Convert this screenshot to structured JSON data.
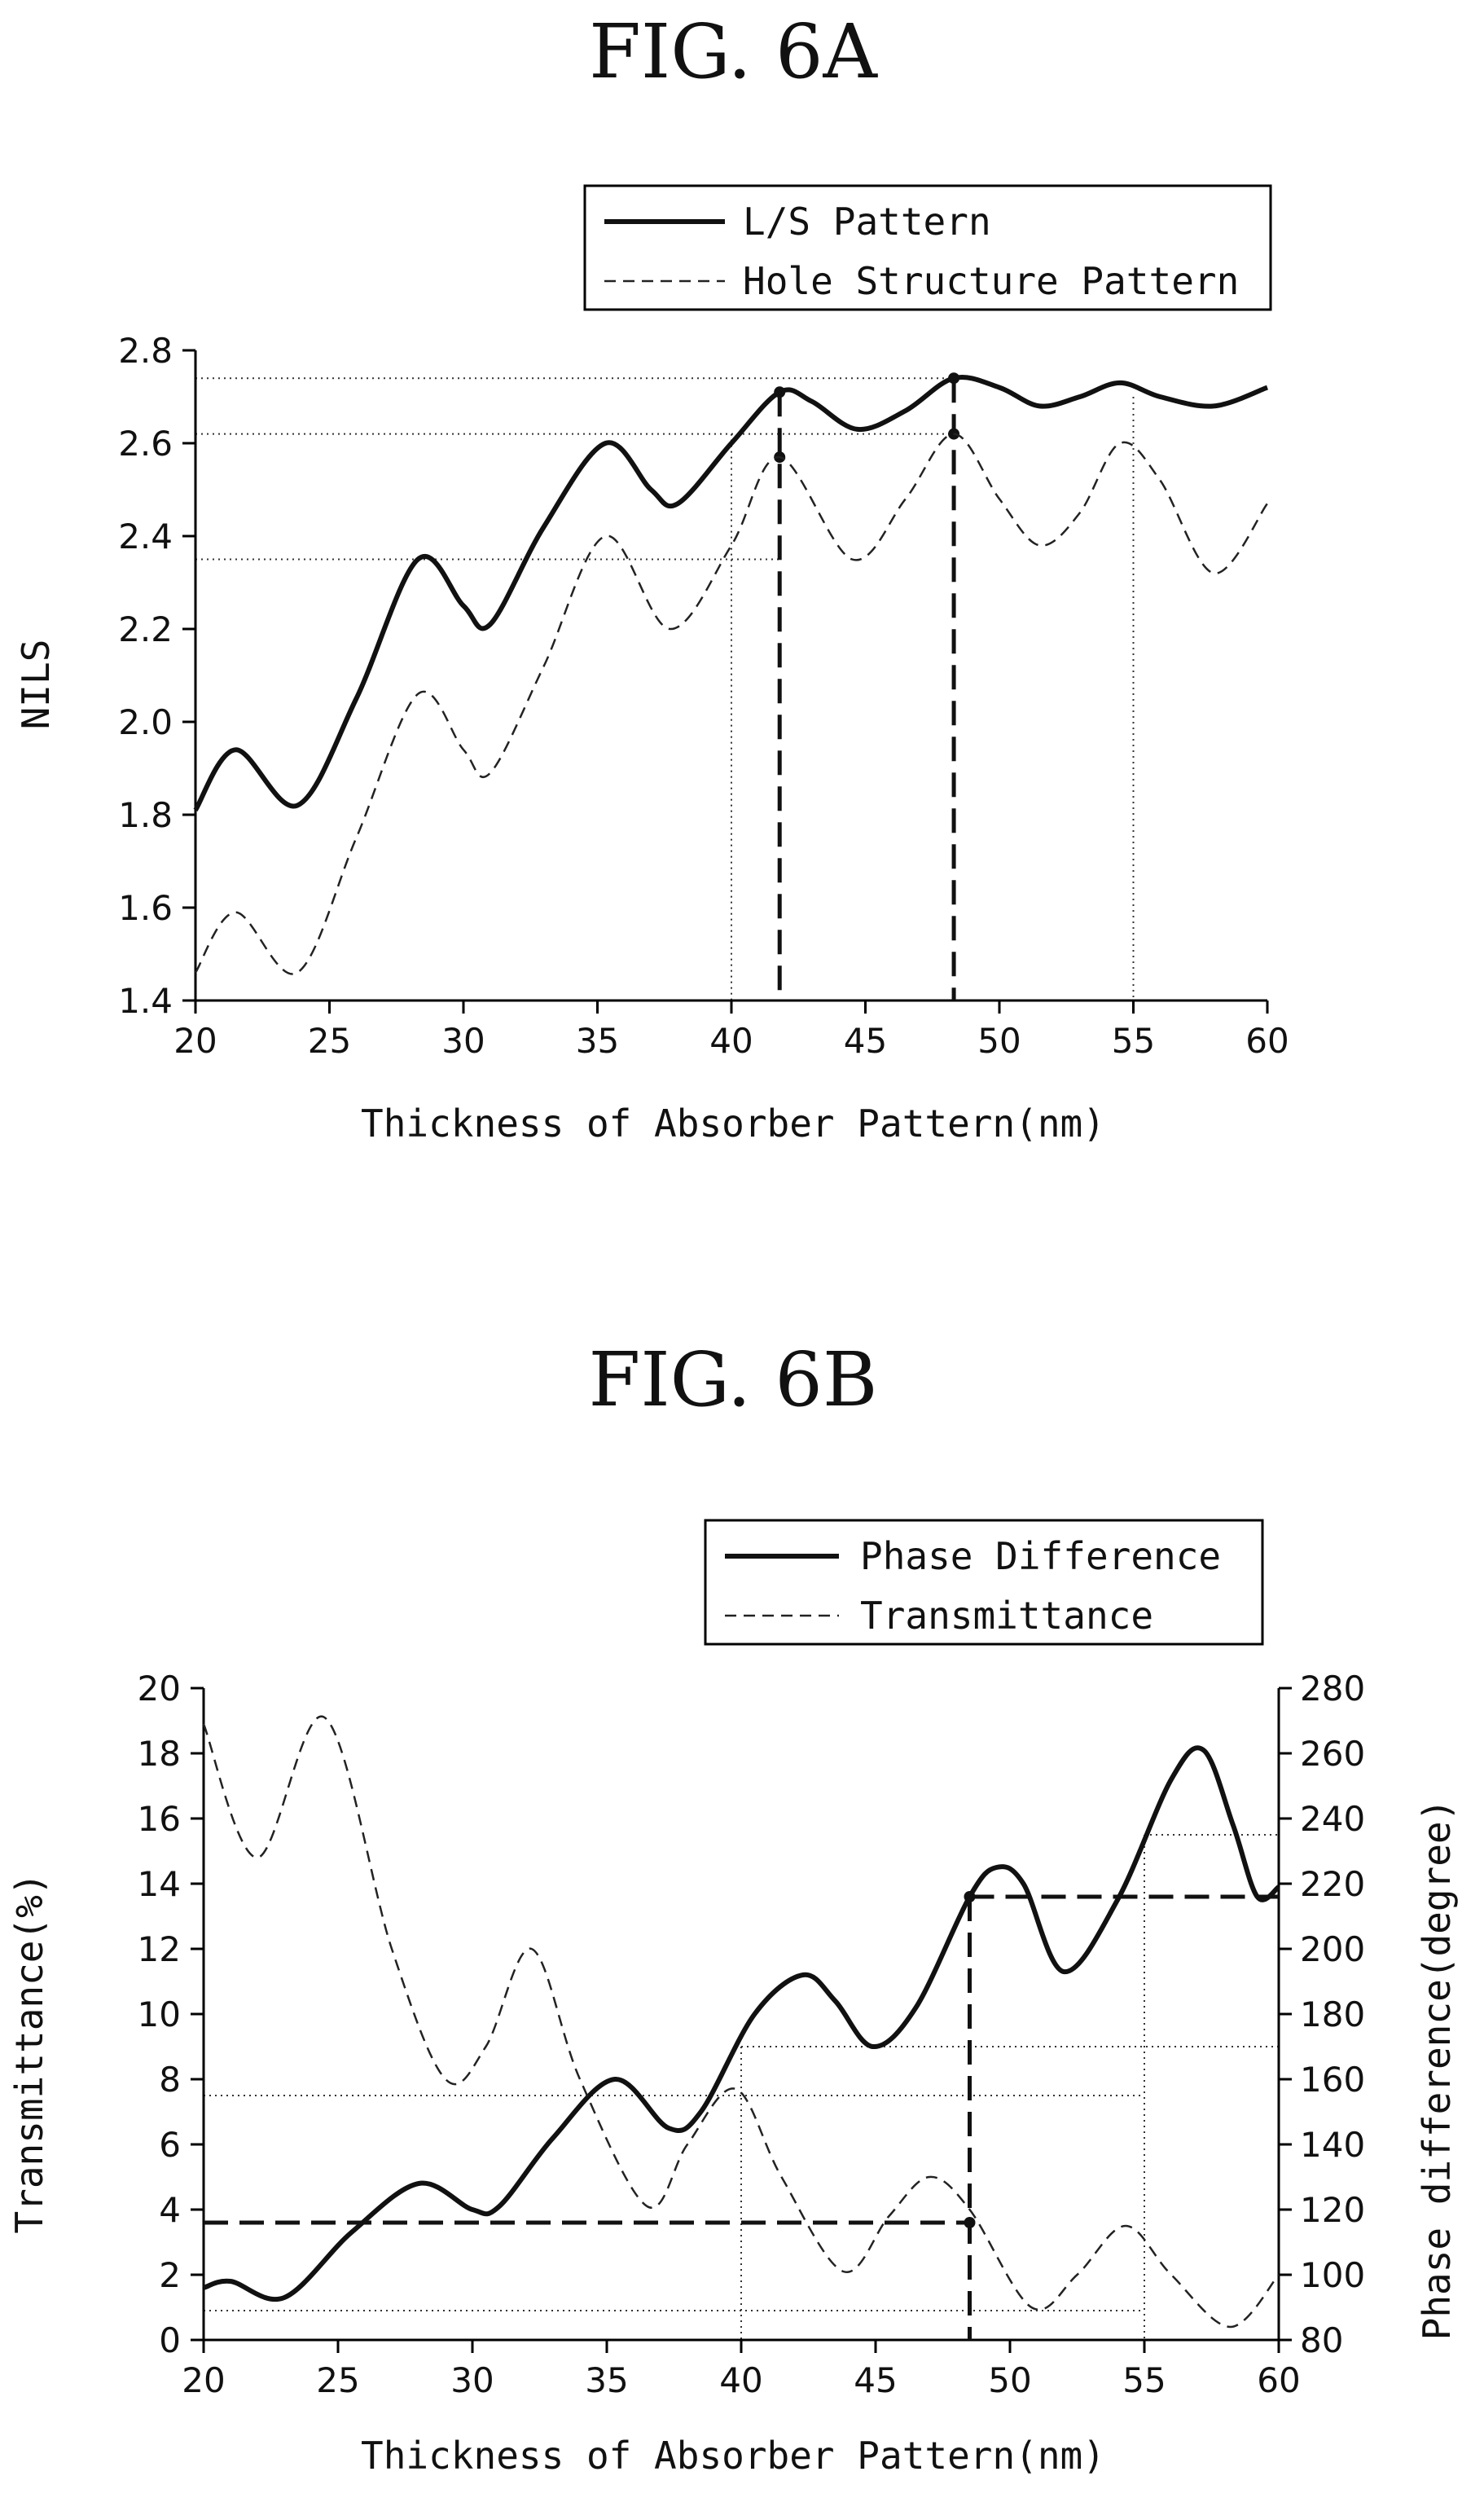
{
  "chart_data": [
    {
      "type": "line",
      "title": "FIG. 6A",
      "xlabel": "Thickness of Absorber Pattern(nm)",
      "ylabel": "NILS",
      "xlim": [
        20,
        60
      ],
      "ylim": [
        1.4,
        2.8
      ],
      "x_ticks": [
        "20",
        "25",
        "30",
        "35",
        "40",
        "45",
        "50",
        "55",
        "60"
      ],
      "y_ticks": [
        "1.4",
        "1.6",
        "1.8",
        "2.0",
        "2.2",
        "2.4",
        "2.6",
        "2.8"
      ],
      "legend_position": "top-right",
      "grid": false,
      "series": [
        {
          "name": "L/S Pattern",
          "style": "solid",
          "x": [
            20,
            21.5,
            23.8,
            26,
            28.3,
            30,
            31,
            33,
            35.3,
            37,
            38,
            40,
            41.8,
            43,
            44.7,
            46.5,
            48.3,
            50,
            51.5,
            53,
            54.5,
            56,
            58,
            60
          ],
          "y": [
            1.81,
            1.94,
            1.82,
            2.05,
            2.35,
            2.25,
            2.21,
            2.42,
            2.6,
            2.5,
            2.47,
            2.6,
            2.71,
            2.69,
            2.63,
            2.67,
            2.74,
            2.72,
            2.68,
            2.7,
            2.73,
            2.7,
            2.68,
            2.72
          ]
        },
        {
          "name": "Hole Structure Pattern",
          "style": "dashed",
          "x": [
            20,
            21.5,
            23.8,
            26,
            28.3,
            30,
            31,
            33,
            35.3,
            37.7,
            40,
            41.8,
            44.5,
            46.5,
            48.3,
            50,
            51.5,
            53,
            54.5,
            56,
            58,
            60
          ],
          "y": [
            1.46,
            1.59,
            1.46,
            1.75,
            2.06,
            1.94,
            1.89,
            2.12,
            2.4,
            2.2,
            2.38,
            2.57,
            2.35,
            2.48,
            2.62,
            2.48,
            2.38,
            2.45,
            2.6,
            2.52,
            2.32,
            2.47
          ]
        }
      ],
      "markers": [
        {
          "x": 41.8,
          "y_top": 2.71,
          "y_mid": 2.57,
          "style": "dashed-vertical"
        },
        {
          "x": 48.3,
          "y_top": 2.74,
          "y_mid": 2.62,
          "style": "dashed-vertical"
        }
      ],
      "guides": {
        "horizontal": [
          2.74,
          2.62,
          2.35
        ],
        "vertical": [
          40,
          55
        ]
      }
    },
    {
      "type": "line",
      "title": "FIG. 6B",
      "xlabel": "Thickness of Absorber Pattern(nm)",
      "ylabel": "Transmittance(%)",
      "ylabel_right": "Phase difference(degree)",
      "xlim": [
        20,
        60
      ],
      "ylim": [
        0,
        20
      ],
      "ylim_right": [
        80,
        280
      ],
      "x_ticks": [
        "20",
        "25",
        "30",
        "35",
        "40",
        "45",
        "50",
        "55",
        "60"
      ],
      "y_ticks": [
        "0",
        "2",
        "4",
        "6",
        "8",
        "10",
        "12",
        "14",
        "16",
        "18",
        "20"
      ],
      "y_ticks_right": [
        "80",
        "100",
        "120",
        "140",
        "160",
        "180",
        "200",
        "220",
        "240",
        "260",
        "280"
      ],
      "legend_position": "top-right",
      "grid": false,
      "series": [
        {
          "name": "Phase Difference",
          "style": "solid",
          "axis": "right",
          "x": [
            20,
            21,
            23,
            25.5,
            28,
            30,
            31,
            33,
            35.3,
            37.3,
            38.5,
            40.5,
            42.3,
            43.5,
            44.9,
            46.5,
            48.5,
            49.5,
            50.5,
            52,
            54,
            56,
            57.2,
            58.3,
            59.2,
            60
          ],
          "y": [
            96,
            98,
            93,
            113,
            128,
            120,
            121,
            142,
            160,
            145,
            150,
            180,
            192,
            184,
            170,
            182,
            216,
            225,
            220,
            193,
            215,
            252,
            261,
            238,
            216,
            219
          ]
        },
        {
          "name": "Transmittance",
          "style": "dashed",
          "axis": "left",
          "x": [
            20,
            22,
            24.5,
            27,
            29,
            30.5,
            32.2,
            34,
            36.5,
            38,
            39.8,
            41.5,
            43.8,
            45.5,
            47,
            48.5,
            50.8,
            52.5,
            54.3,
            56,
            58.2,
            60
          ],
          "y": [
            18.9,
            14.8,
            19.1,
            12.0,
            8.0,
            9.0,
            12.0,
            8.0,
            4.1,
            6.0,
            7.7,
            5.0,
            2.1,
            3.8,
            5.0,
            4.0,
            1.0,
            2.0,
            3.5,
            2.0,
            0.4,
            2.0
          ]
        }
      ],
      "markers": [
        {
          "x": 48.5,
          "y_left": 3.6,
          "y_right": 216,
          "style": "dashed-cross"
        }
      ],
      "guides": {
        "horizontal_left": [
          7.5,
          0.9,
          9.0,
          15.5
        ],
        "vertical": [
          40,
          55
        ]
      }
    }
  ],
  "legend_labels": {
    "a_solid": "L/S Pattern",
    "a_dashed": "Hole Structure Pattern",
    "b_solid": "Phase Difference",
    "b_dashed": "Transmittance"
  }
}
